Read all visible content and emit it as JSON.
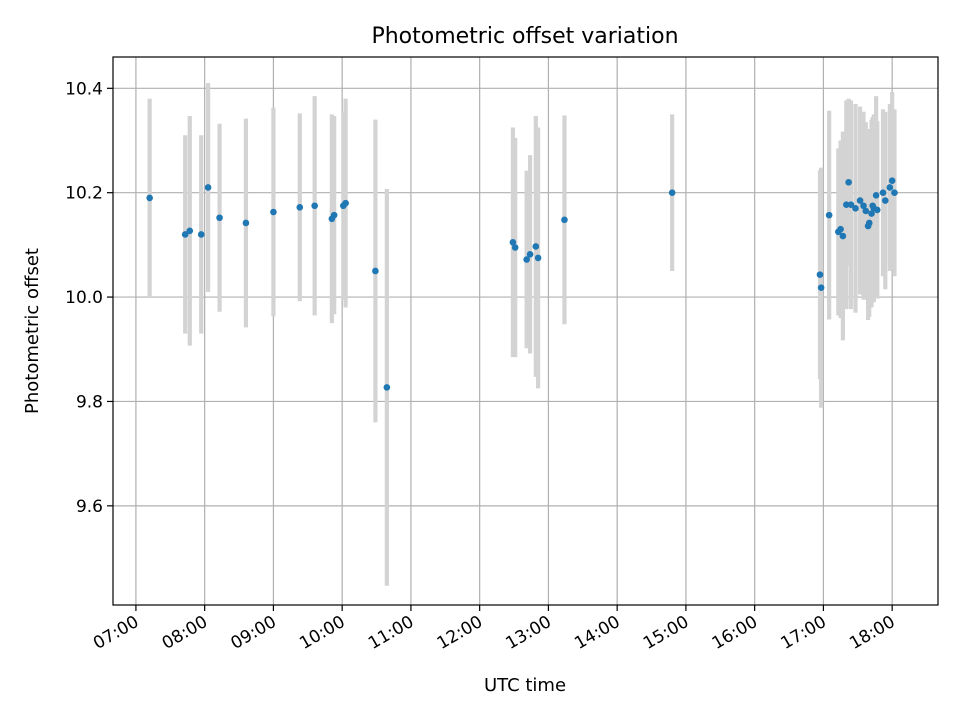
{
  "chart_data": {
    "type": "scatter",
    "title": "Photometric offset variation",
    "xlabel": "UTC time",
    "ylabel": "Photometric offset",
    "grid": true,
    "xlim": [
      "06:40",
      "18:40"
    ],
    "ylim": [
      9.41,
      10.46
    ],
    "x_ticks": [
      "07:00",
      "08:00",
      "09:00",
      "10:00",
      "11:00",
      "12:00",
      "13:00",
      "14:00",
      "15:00",
      "16:00",
      "17:00",
      "18:00"
    ],
    "y_ticks": [
      9.6,
      9.8,
      10.0,
      10.2,
      10.4
    ],
    "y_tick_labels": [
      "9.6",
      "9.8",
      "10.0",
      "10.2",
      "10.4"
    ],
    "colors": {
      "points": "#1f77b4",
      "error_bars": "#d3d3d3"
    },
    "series": [
      {
        "x": [
          "07:12",
          "07:43",
          "07:47",
          "07:57",
          "08:03",
          "08:13",
          "08:36",
          "09:00",
          "09:23",
          "09:36",
          "09:51",
          "09:53",
          "10:01",
          "10:03",
          "10:29",
          "10:39",
          "12:29",
          "12:31",
          "12:41",
          "12:44",
          "12:49",
          "12:51",
          "13:14",
          "14:48",
          "16:57",
          "16:58",
          "17:05",
          "17:13",
          "17:15",
          "17:17",
          "17:20",
          "17:22",
          "17:24",
          "17:28",
          "17:32",
          "17:35",
          "17:37",
          "17:39",
          "17:40",
          "17:42",
          "17:43",
          "17:44",
          "17:46",
          "17:47",
          "17:52",
          "17:54",
          "17:58",
          "18:00",
          "18:02"
        ],
        "y": [
          10.19,
          10.12,
          10.127,
          10.12,
          10.21,
          10.152,
          10.142,
          10.163,
          10.172,
          10.175,
          10.15,
          10.157,
          10.175,
          10.18,
          10.05,
          9.827,
          10.105,
          10.095,
          10.072,
          10.082,
          10.097,
          10.075,
          10.148,
          10.2,
          10.043,
          10.018,
          10.157,
          10.125,
          10.13,
          10.117,
          10.177,
          10.22,
          10.177,
          10.17,
          10.185,
          10.175,
          10.165,
          10.136,
          10.142,
          10.16,
          10.175,
          10.17,
          10.195,
          10.167,
          10.2,
          10.185,
          10.21,
          10.223,
          10.2
        ],
        "y_err": [
          0.19,
          0.19,
          0.22,
          0.19,
          0.2,
          0.18,
          0.2,
          0.2,
          0.18,
          0.21,
          0.2,
          0.19,
          0.18,
          0.2,
          0.29,
          0.38,
          0.22,
          0.21,
          0.17,
          0.19,
          0.25,
          0.25,
          0.2,
          0.15,
          0.2,
          0.23,
          0.2,
          0.16,
          0.17,
          0.2,
          0.2,
          0.16,
          0.2,
          0.2,
          0.18,
          0.18,
          0.17,
          0.18,
          0.18,
          0.18,
          0.17,
          0.18,
          0.19,
          0.17,
          0.16,
          0.17,
          0.16,
          0.17,
          0.16
        ]
      }
    ]
  }
}
